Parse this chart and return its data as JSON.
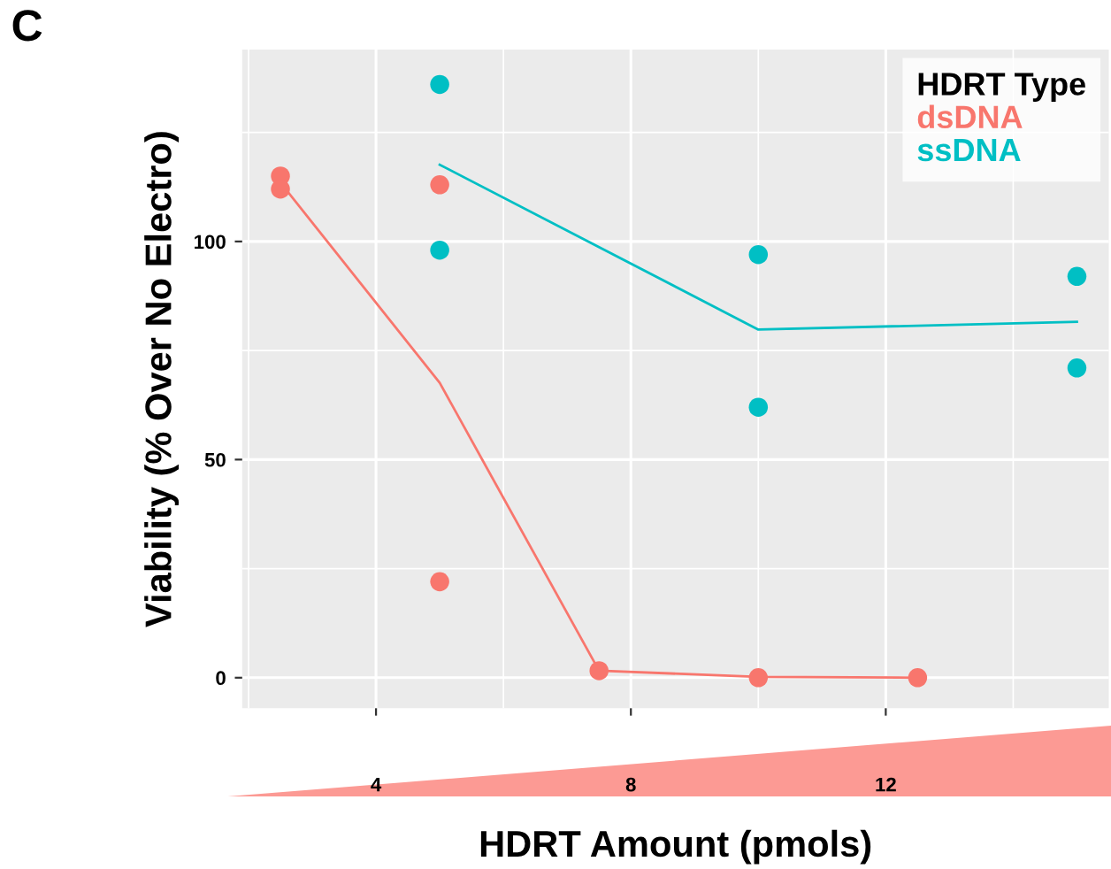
{
  "chart_data": {
    "type": "scatter",
    "xlabel": "HDRT Amount (pmols)",
    "ylabel": "Viability (% Over No Electro)",
    "legend_title": "HDRT Type",
    "annotations": [
      "C"
    ],
    "series": [
      {
        "name": "dsDNA",
        "color": "#f8766d",
        "marker": "circle",
        "x": [
          2.5,
          2.5,
          5,
          5,
          7.5,
          10,
          12.5
        ],
        "values": [
          115,
          112,
          113,
          22,
          1.6,
          0,
          0
        ]
      },
      {
        "name": "ssDNA",
        "color": "#00bfc4",
        "marker": "circle",
        "x": [
          5,
          5,
          10,
          10,
          15,
          15
        ],
        "values": [
          136,
          98,
          97,
          62,
          92,
          71
        ]
      },
      {
        "type": "line",
        "color": "#f8766d",
        "marker": "none",
        "x": [
          2.5,
          5,
          7.5,
          10,
          12.5
        ],
        "values": [
          113.5,
          67.6,
          1.6,
          0.2,
          0
        ]
      },
      {
        "type": "line",
        "color": "#00bfc4",
        "marker": "none",
        "x": [
          5,
          10,
          15
        ],
        "values": [
          117.6,
          79.8,
          81.6
        ]
      }
    ],
    "xlim": [
      1.9,
      15.5
    ],
    "xticks": [
      4,
      8,
      12
    ],
    "ylim": [
      -7,
      144
    ],
    "yticks": [
      0,
      50,
      100
    ],
    "grid": true,
    "legend": "top right"
  }
}
